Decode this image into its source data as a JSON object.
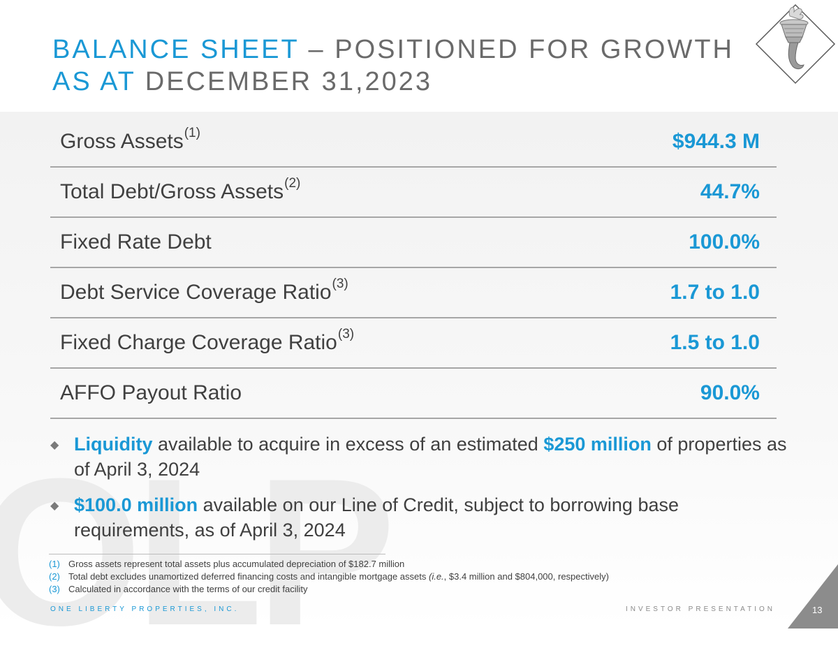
{
  "title": {
    "line1_accent": "BALANCE SHEET",
    "line1_rest": " – POSITIONED FOR GROWTH",
    "line2_accent": "AS AT",
    "line2_rest": " DECEMBER 31,2023"
  },
  "logo": {
    "icon": "statue-of-liberty-torch-icon"
  },
  "metrics": [
    {
      "label": "Gross Assets",
      "note": "(1)",
      "value": "$944.3 M"
    },
    {
      "label": "Total Debt/Gross Assets",
      "note": "(2)",
      "value": "44.7%"
    },
    {
      "label": "Fixed Rate Debt",
      "note": "",
      "value": "100.0%"
    },
    {
      "label": "Debt Service Coverage Ratio",
      "note": "(3)",
      "value": "1.7 to 1.0"
    },
    {
      "label": "Fixed Charge Coverage Ratio",
      "note": "(3)",
      "value": "1.5 to 1.0"
    },
    {
      "label": "AFFO Payout Ratio",
      "note": "",
      "value": "90.0%"
    }
  ],
  "bullets": [
    {
      "icon": "diamond-bullet-icon",
      "highlight1": "Liquidity",
      "text1": " available to acquire in excess of an estimated ",
      "highlight2": "$250 million",
      "text2": " of properties as of April 3, 2024"
    },
    {
      "icon": "diamond-bullet-icon",
      "highlight1": "$100.0 million",
      "text1": " available on our Line of Credit, subject to borrowing base requirements, as of April 3, 2024"
    }
  ],
  "footnotes": [
    {
      "num": "(1)",
      "text": "Gross  assets represent total assets plus accumulated depreciation of $182.7 million"
    },
    {
      "num": "(2)",
      "text_before": "Total debt excludes unamortized deferred financing costs and intangible mortgage assets ",
      "italic": "(i.e.",
      "text_after": ", $3.4 million and $804,000, respectively)"
    },
    {
      "num": "(3)",
      "text": "Calculated in accordance with the terms of our credit facility"
    }
  ],
  "footer": {
    "company": "ONE LIBERTY PROPERTIES, INC.",
    "presentation": "INVESTOR PRESENTATION",
    "page_number": "13"
  },
  "watermark": "OLP",
  "colors": {
    "accent": "#1a98d5",
    "text": "#404040",
    "page_corner": "#8c8c8c"
  }
}
